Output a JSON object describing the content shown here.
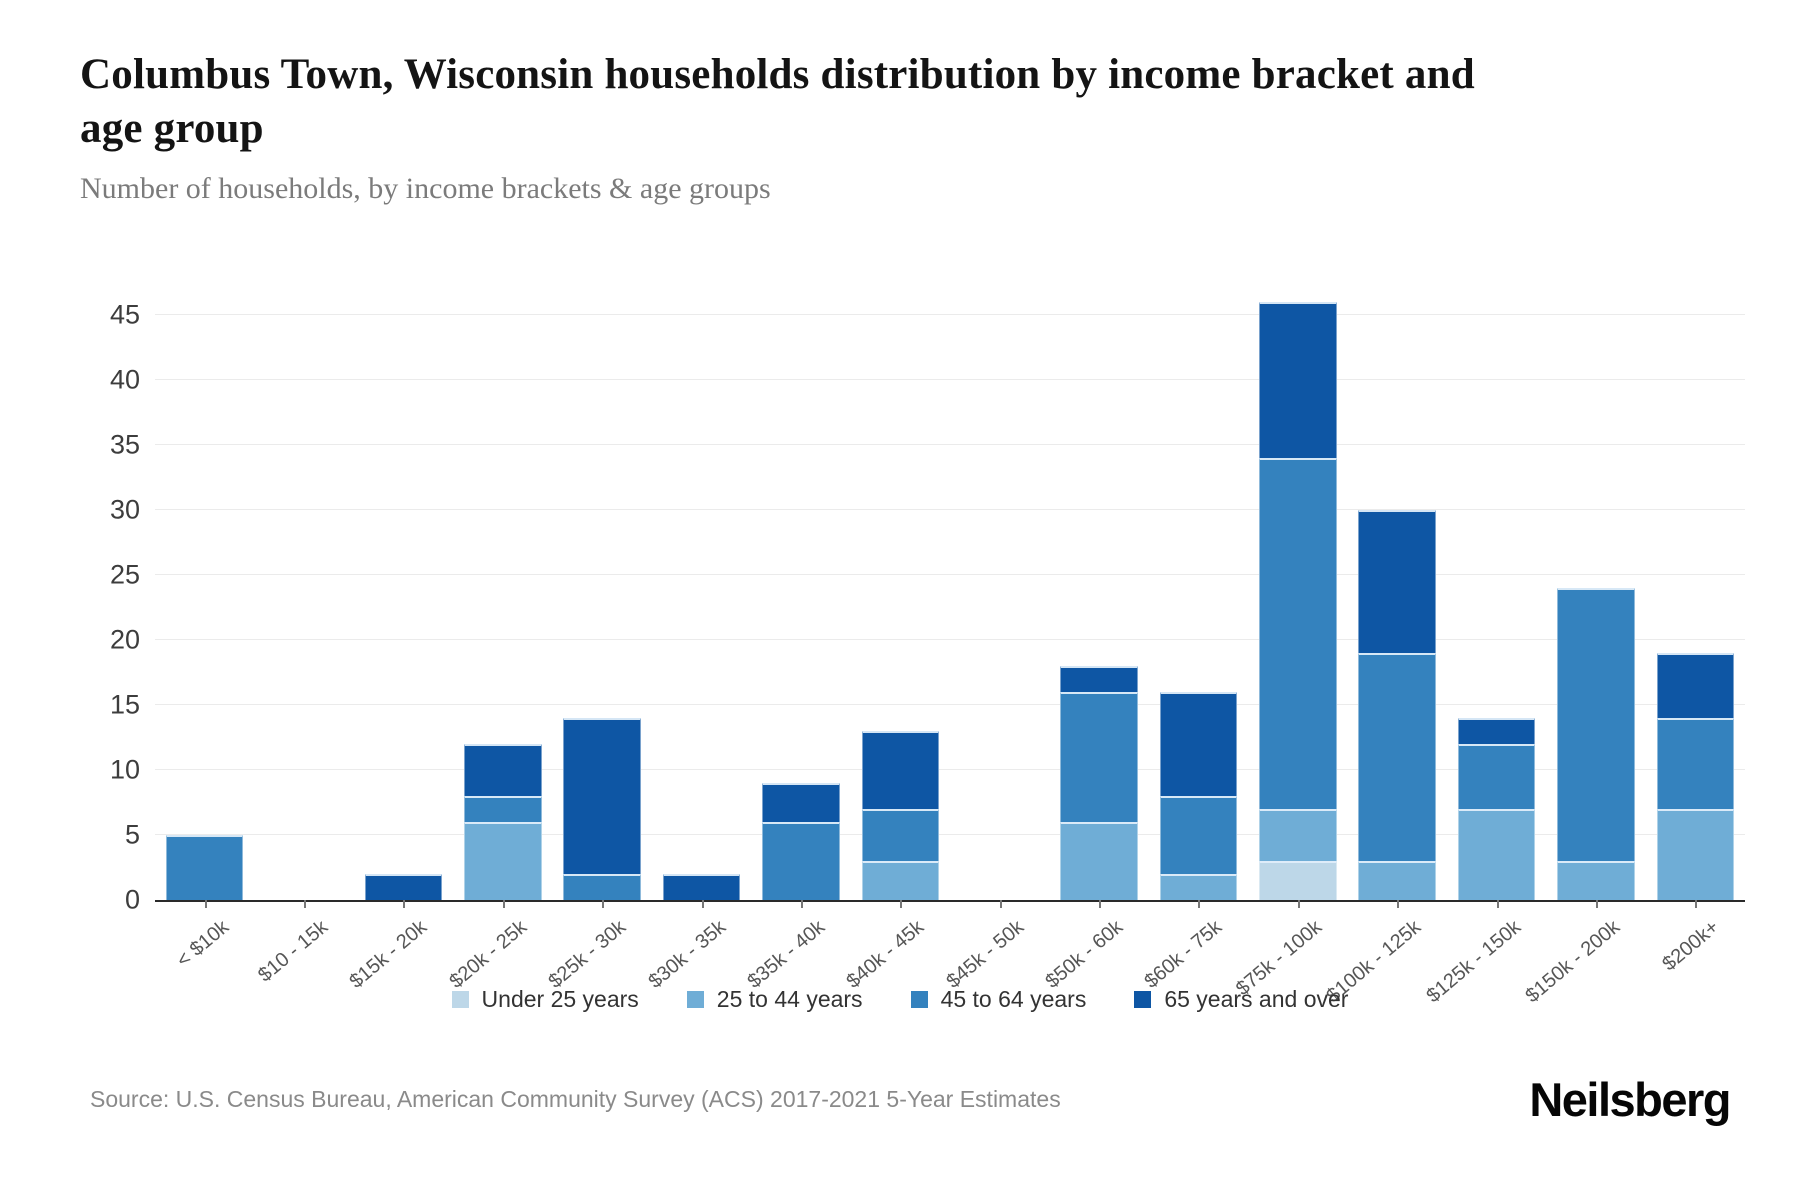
{
  "header": {
    "title": "Columbus Town, Wisconsin households distribution by income bracket and age group",
    "subtitle": "Number of households, by income brackets & age groups"
  },
  "footer": {
    "source": "Source: U.S. Census Bureau, American Community Survey (ACS) 2017-2021 5-Year Estimates",
    "brand": "Neilsberg"
  },
  "colors": {
    "under_25": "#bdd7e8",
    "age_25_44": "#6fadd6",
    "age_45_64": "#3482be",
    "age_65_over": "#0e56a4",
    "gridline": "#ebebeb",
    "axis_line": "#2a2a2a"
  },
  "chart_data": {
    "type": "bar",
    "stacked": true,
    "title": "Columbus Town, Wisconsin households distribution by income bracket and age group",
    "subtitle": "Number of households, by income brackets & age groups",
    "xlabel": "",
    "ylabel": "",
    "ylim": [
      0,
      45
    ],
    "ytick_step": 5,
    "grid": true,
    "legend_position": "bottom",
    "categories": [
      "< $10k",
      "$10 - 15k",
      "$15k - 20k",
      "$20k - 25k",
      "$25k - 30k",
      "$30k - 35k",
      "$35k - 40k",
      "$40k - 45k",
      "$45k - 50k",
      "$50k - 60k",
      "$60k - 75k",
      "$75k - 100k",
      "$100k - 125k",
      "$125k - 150k",
      "$150k - 200k",
      "$200k+"
    ],
    "series": [
      {
        "name": "Under 25 years",
        "color": "#bdd7e8",
        "values": [
          0,
          0,
          0,
          0,
          0,
          0,
          0,
          0,
          0,
          0,
          0,
          3,
          0,
          0,
          0,
          0
        ]
      },
      {
        "name": "25 to 44 years",
        "color": "#6fadd6",
        "values": [
          0,
          0,
          0,
          6,
          0,
          0,
          0,
          3,
          0,
          6,
          2,
          4,
          3,
          7,
          3,
          7
        ]
      },
      {
        "name": "45 to 64 years",
        "color": "#3482be",
        "values": [
          5,
          0,
          0,
          2,
          2,
          0,
          6,
          4,
          0,
          10,
          6,
          27,
          16,
          5,
          21,
          7
        ]
      },
      {
        "name": "65 years and over",
        "color": "#0e56a4",
        "values": [
          0,
          0,
          2,
          4,
          12,
          2,
          3,
          6,
          0,
          2,
          8,
          12,
          11,
          2,
          0,
          5
        ]
      }
    ],
    "totals": [
      5,
      0,
      2,
      12,
      14,
      2,
      9,
      13,
      0,
      18,
      16,
      46,
      30,
      14,
      24,
      19
    ]
  }
}
